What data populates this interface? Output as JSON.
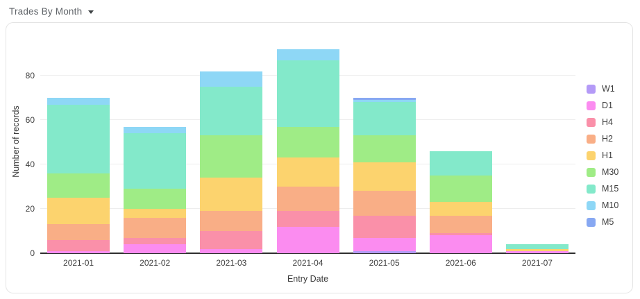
{
  "header": {
    "title": "Trades By Month"
  },
  "chart_data": {
    "type": "bar",
    "stacked": true,
    "title": "Trades By Month",
    "xlabel": "Entry Date",
    "ylabel": "Number of records",
    "categories": [
      "2021-01",
      "2021-02",
      "2021-03",
      "2021-04",
      "2021-05",
      "2021-06",
      "2021-07"
    ],
    "series": [
      {
        "name": "W1",
        "color": "#b49af7",
        "values": [
          0,
          0,
          0,
          0,
          1,
          0,
          0
        ]
      },
      {
        "name": "D1",
        "color": "#fb8cf0",
        "values": [
          1,
          4,
          2,
          12,
          6,
          8,
          1
        ]
      },
      {
        "name": "H4",
        "color": "#fa90a9",
        "values": [
          5,
          3,
          8,
          7,
          10,
          1,
          0
        ]
      },
      {
        "name": "H2",
        "color": "#f9ae86",
        "values": [
          7,
          9,
          9,
          11,
          11,
          8,
          0
        ]
      },
      {
        "name": "H1",
        "color": "#fcd36e",
        "values": [
          12,
          4,
          15,
          13,
          13,
          6,
          1
        ]
      },
      {
        "name": "M30",
        "color": "#9fec86",
        "values": [
          11,
          9,
          19,
          14,
          12,
          12,
          0
        ]
      },
      {
        "name": "M15",
        "color": "#83e9ca",
        "values": [
          31,
          25,
          22,
          30,
          15,
          11,
          2
        ]
      },
      {
        "name": "M10",
        "color": "#8ed7f6",
        "values": [
          3,
          3,
          7,
          5,
          1,
          0,
          0
        ]
      },
      {
        "name": "M5",
        "color": "#87a8f2",
        "values": [
          0,
          0,
          0,
          0,
          1,
          0,
          0
        ]
      }
    ],
    "totals": [
      70,
      57,
      82,
      92,
      70,
      46,
      4
    ],
    "y_ticks": [
      0,
      20,
      40,
      60,
      80
    ],
    "ylim": [
      0,
      100
    ],
    "grid": "horizontal",
    "legend_position": "right",
    "legend_order_top_to_bottom": [
      "W1",
      "D1",
      "H4",
      "H2",
      "H1",
      "M30",
      "M15",
      "M10",
      "M5"
    ]
  }
}
